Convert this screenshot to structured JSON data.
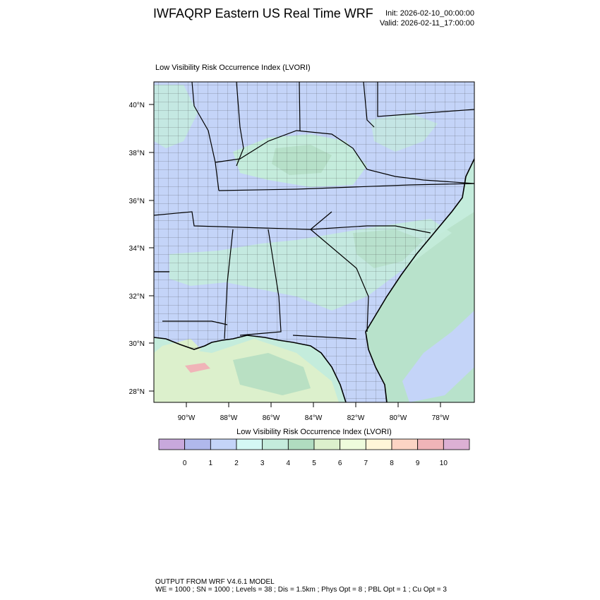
{
  "header": {
    "title": "IWFAQRP Eastern US Real Time WRF",
    "init": "Init: 2026-02-10_00:00:00",
    "valid": "Valid: 2026-02-11_17:00:00"
  },
  "map": {
    "title": "Low Visibility Risk Occurrence Index   (LVORI)",
    "lat_labels": [
      "40°N",
      "38°N",
      "36°N",
      "34°N",
      "32°N",
      "30°N",
      "28°N"
    ],
    "lon_labels": [
      "90°W",
      "88°W",
      "86°W",
      "84°W",
      "82°W",
      "80°W",
      "78°W"
    ],
    "lat_range": [
      27.5,
      41.0
    ],
    "lon_range": [
      -91.5,
      -76.6
    ]
  },
  "colorbar": {
    "title": "Low Visibility Risk Occurrence Index  (LVORI)",
    "colors": [
      "#c8a8dc",
      "#b0b8ec",
      "#c4d4f8",
      "#d4f8f4",
      "#c4ecdc",
      "#b0dcc0",
      "#dcf0cc",
      "#eefcdc",
      "#fff6d8",
      "#fcd4c4",
      "#f0b4b8",
      "#dcb0d4"
    ],
    "labels": [
      "0",
      "1",
      "2",
      "3",
      "4",
      "5",
      "6",
      "7",
      "8",
      "9",
      "10"
    ]
  },
  "footer": {
    "line1": "OUTPUT FROM WRF V4.6.1 MODEL",
    "line2": "WE = 1000 ; SN = 1000 ; Levels = 38 ; Dis = 1.5km ; Phys Opt = 8 ; PBL Opt = 1 ; Cu Opt = 3"
  }
}
